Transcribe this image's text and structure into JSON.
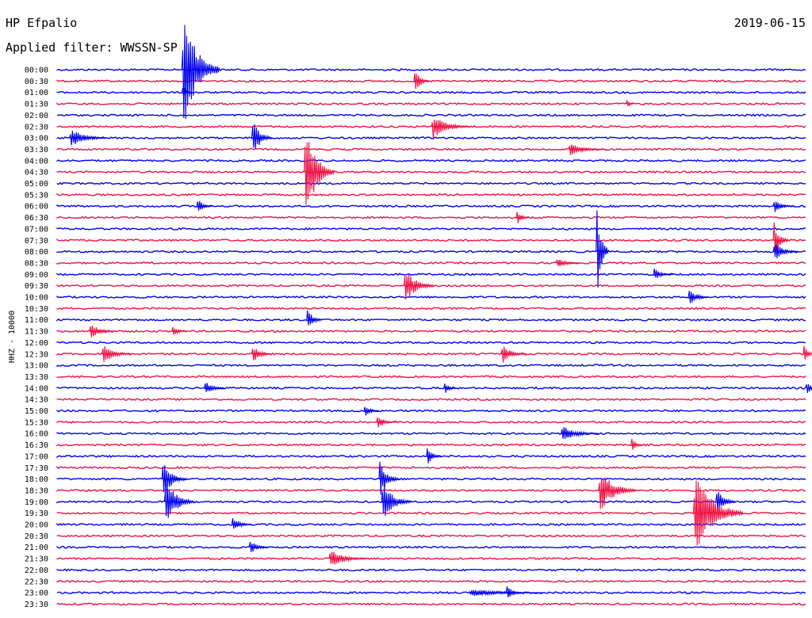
{
  "header": {
    "station": "HP Efpalio",
    "date": "2019-06-15",
    "filter_prefix": "Applied filter: ",
    "filter": "WWSSN-SP"
  },
  "chart_data": {
    "type": "line",
    "title": "HP Efpalio",
    "ylabel": "HHZ - 10000",
    "channel": "HHZ",
    "scale": "10000",
    "colors": {
      "even_hour": "#0000ee",
      "half_hour": "#ee1144",
      "text": "#000000"
    },
    "rows": [
      "00:00",
      "00:30",
      "01:00",
      "01:30",
      "02:00",
      "02:30",
      "03:00",
      "03:30",
      "04:00",
      "04:30",
      "05:00",
      "05:30",
      "06:00",
      "06:30",
      "07:00",
      "07:30",
      "08:00",
      "08:30",
      "09:00",
      "09:30",
      "10:00",
      "10:30",
      "11:00",
      "11:30",
      "12:00",
      "12:30",
      "13:00",
      "13:30",
      "14:00",
      "14:30",
      "15:00",
      "15:30",
      "16:00",
      "16:30",
      "17:00",
      "17:30",
      "18:00",
      "18:30",
      "19:00",
      "19:30",
      "20:00",
      "20:30",
      "21:00",
      "21:30",
      "22:00",
      "22:30",
      "23:00",
      "23:30"
    ],
    "events": [
      {
        "row": 0,
        "minute": 5.0,
        "amplitude": 90,
        "duration": 1.5
      },
      {
        "row": 1,
        "minute": 14.3,
        "amplitude": 22,
        "duration": 0.6
      },
      {
        "row": 2,
        "minute": 5.0,
        "amplitude": 14,
        "duration": 0.4
      },
      {
        "row": 3,
        "minute": 22.8,
        "amplitude": 10,
        "duration": 0.3
      },
      {
        "row": 5,
        "minute": 15.0,
        "amplitude": 18,
        "duration": 1.5
      },
      {
        "row": 6,
        "minute": 0.5,
        "amplitude": 14,
        "duration": 1.5
      },
      {
        "row": 6,
        "minute": 7.8,
        "amplitude": 30,
        "duration": 0.8
      },
      {
        "row": 7,
        "minute": 20.5,
        "amplitude": 9,
        "duration": 1.5
      },
      {
        "row": 9,
        "minute": 9.9,
        "amplitude": 75,
        "duration": 1.2
      },
      {
        "row": 12,
        "minute": 5.6,
        "amplitude": 12,
        "duration": 0.6
      },
      {
        "row": 12,
        "minute": 28.7,
        "amplitude": 10,
        "duration": 0.8
      },
      {
        "row": 13,
        "minute": 18.4,
        "amplitude": 12,
        "duration": 0.5
      },
      {
        "row": 15,
        "minute": 28.7,
        "amplitude": 28,
        "duration": 0.6
      },
      {
        "row": 16,
        "minute": 21.6,
        "amplitude": 80,
        "duration": 0.5
      },
      {
        "row": 16,
        "minute": 28.7,
        "amplitude": 14,
        "duration": 1.0
      },
      {
        "row": 17,
        "minute": 20.0,
        "amplitude": 8,
        "duration": 1.0
      },
      {
        "row": 18,
        "minute": 23.9,
        "amplitude": 9,
        "duration": 0.8
      },
      {
        "row": 19,
        "minute": 13.9,
        "amplitude": 26,
        "duration": 1.2
      },
      {
        "row": 20,
        "minute": 25.3,
        "amplitude": 14,
        "duration": 0.8
      },
      {
        "row": 22,
        "minute": 10.0,
        "amplitude": 18,
        "duration": 0.6
      },
      {
        "row": 23,
        "minute": 1.3,
        "amplitude": 12,
        "duration": 1.0
      },
      {
        "row": 23,
        "minute": 4.6,
        "amplitude": 8,
        "duration": 0.6
      },
      {
        "row": 25,
        "minute": 1.8,
        "amplitude": 14,
        "duration": 1.2
      },
      {
        "row": 25,
        "minute": 7.8,
        "amplitude": 14,
        "duration": 0.8
      },
      {
        "row": 25,
        "minute": 17.8,
        "amplitude": 14,
        "duration": 1.0
      },
      {
        "row": 25,
        "minute": 29.9,
        "amplitude": 14,
        "duration": 0.5
      },
      {
        "row": 28,
        "minute": 5.9,
        "amplitude": 12,
        "duration": 0.8
      },
      {
        "row": 28,
        "minute": 15.5,
        "amplitude": 10,
        "duration": 0.5
      },
      {
        "row": 28,
        "minute": 30.0,
        "amplitude": 10,
        "duration": 0.6
      },
      {
        "row": 30,
        "minute": 12.3,
        "amplitude": 10,
        "duration": 0.6
      },
      {
        "row": 31,
        "minute": 12.8,
        "amplitude": 10,
        "duration": 0.8
      },
      {
        "row": 32,
        "minute": 20.2,
        "amplitude": 12,
        "duration": 1.5
      },
      {
        "row": 33,
        "minute": 23.0,
        "amplitude": 10,
        "duration": 0.5
      },
      {
        "row": 34,
        "minute": 14.8,
        "amplitude": 14,
        "duration": 0.6
      },
      {
        "row": 36,
        "minute": 4.2,
        "amplitude": 30,
        "duration": 1.0
      },
      {
        "row": 36,
        "minute": 12.9,
        "amplitude": 28,
        "duration": 0.8
      },
      {
        "row": 37,
        "minute": 21.7,
        "amplitude": 32,
        "duration": 1.5
      },
      {
        "row": 38,
        "minute": 4.3,
        "amplitude": 35,
        "duration": 1.2
      },
      {
        "row": 38,
        "minute": 13.0,
        "amplitude": 30,
        "duration": 1.2
      },
      {
        "row": 38,
        "minute": 26.4,
        "amplitude": 20,
        "duration": 0.8
      },
      {
        "row": 39,
        "minute": 25.5,
        "amplitude": 60,
        "duration": 2.0
      },
      {
        "row": 40,
        "minute": 7.0,
        "amplitude": 12,
        "duration": 0.8
      },
      {
        "row": 42,
        "minute": 7.7,
        "amplitude": 10,
        "duration": 0.8
      },
      {
        "row": 43,
        "minute": 10.9,
        "amplitude": 14,
        "duration": 1.5
      },
      {
        "row": 46,
        "minute": 18.0,
        "amplitude": 12,
        "duration": 0.6
      },
      {
        "row": 46,
        "minute": 16.5,
        "amplitude": 6,
        "duration": 3.0
      }
    ]
  }
}
